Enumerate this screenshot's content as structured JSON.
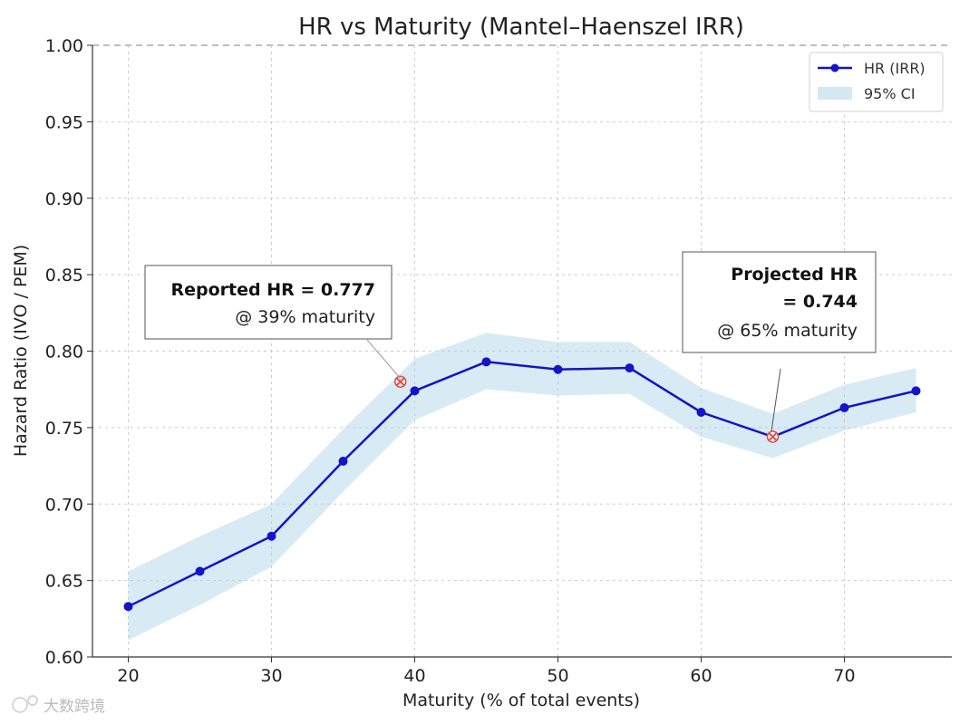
{
  "chart_data": {
    "type": "line",
    "title": "HR vs Maturity (Mantel–Haenszel IRR)",
    "xlabel": "Maturity (% of total events)",
    "ylabel": "Hazard Ratio (IVO / PEM)",
    "xlim": [
      17.5,
      77.5
    ],
    "ylim": [
      0.6,
      1.0
    ],
    "xticks": [
      "20",
      "30",
      "40",
      "50",
      "60",
      "70"
    ],
    "yticks": [
      "0.60",
      "0.65",
      "0.70",
      "0.75",
      "0.80",
      "0.85",
      "0.90",
      "0.95",
      "1.00"
    ],
    "x": [
      20,
      25,
      30,
      35,
      40,
      45,
      50,
      55,
      60,
      65,
      70,
      75
    ],
    "series": [
      {
        "name": "HR (IRR)",
        "values": [
          0.633,
          0.656,
          0.679,
          0.728,
          0.774,
          0.793,
          0.788,
          0.789,
          0.76,
          0.744,
          0.763,
          0.774
        ]
      }
    ],
    "ci_band": {
      "name": "95% CI",
      "lower": [
        0.611,
        0.634,
        0.659,
        0.708,
        0.755,
        0.775,
        0.771,
        0.772,
        0.744,
        0.73,
        0.748,
        0.76
      ],
      "upper": [
        0.656,
        0.679,
        0.7,
        0.749,
        0.795,
        0.812,
        0.806,
        0.806,
        0.776,
        0.759,
        0.778,
        0.789
      ]
    },
    "markers": [
      {
        "x": 39,
        "y": 0.78
      },
      {
        "x": 65,
        "y": 0.744
      }
    ],
    "annotations": [
      {
        "bold": "Reported HR = 0.777",
        "text": "@ 39% maturity"
      },
      {
        "bold_lines": [
          "Projected HR",
          "= 0.744"
        ],
        "text": "@ 65% maturity"
      }
    ],
    "ref_line": 1.0,
    "grid": true,
    "legend_position": "top-right",
    "colors": {
      "line": "#1414c8",
      "band": "#a9d2e6",
      "marker": "#d9534f",
      "grid": "#cccccc"
    }
  },
  "watermark": "大数跨境"
}
